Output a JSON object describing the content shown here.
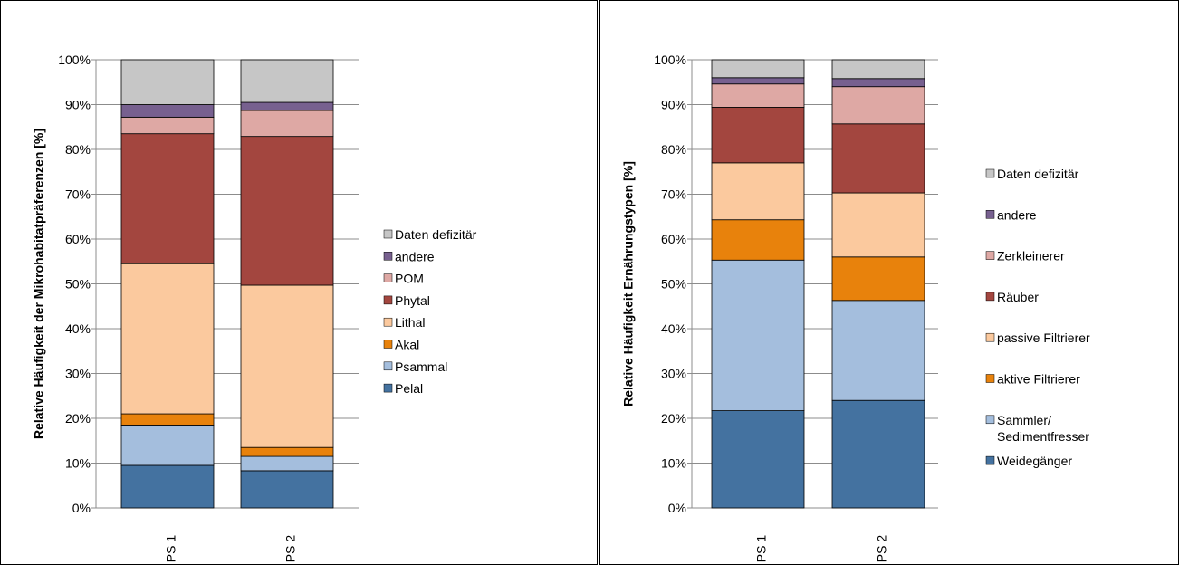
{
  "chart_data": [
    {
      "type": "bar",
      "stacked": true,
      "categories": [
        "PS 1",
        "PS 2"
      ],
      "ylabel": "Relative Häufigkeit der Mikrohabitatpräferenzen [%]",
      "xlabel": "",
      "ylim": [
        0,
        100
      ],
      "yticks": [
        "0%",
        "10%",
        "20%",
        "30%",
        "40%",
        "50%",
        "60%",
        "70%",
        "80%",
        "90%",
        "100%"
      ],
      "grid": true,
      "legend_position": "right",
      "series": [
        {
          "name": "Pelal",
          "color": "#4472a0",
          "values": [
            9.5,
            8.3
          ]
        },
        {
          "name": "Psammal",
          "color": "#a4bedd",
          "values": [
            9.0,
            3.2
          ]
        },
        {
          "name": "Akal",
          "color": "#e8820c",
          "values": [
            2.5,
            2.0
          ]
        },
        {
          "name": "Lithal",
          "color": "#fbc99e",
          "values": [
            33.5,
            36.2
          ]
        },
        {
          "name": "Phytal",
          "color": "#a3463f",
          "values": [
            29.0,
            33.2
          ]
        },
        {
          "name": "POM",
          "color": "#dea8a4",
          "values": [
            3.7,
            5.8
          ]
        },
        {
          "name": "andere",
          "color": "#77608f",
          "values": [
            2.8,
            1.8
          ]
        },
        {
          "name": "Daten defizitär",
          "color": "#c6c6c6",
          "values": [
            10.0,
            9.5
          ]
        }
      ]
    },
    {
      "type": "bar",
      "stacked": true,
      "categories": [
        "PS 1",
        "PS 2"
      ],
      "ylabel": "Relative Häufigkeit Ernährungstypen [%]",
      "xlabel": "",
      "ylim": [
        0,
        100
      ],
      "yticks": [
        "0%",
        "10%",
        "20%",
        "30%",
        "40%",
        "50%",
        "60%",
        "70%",
        "80%",
        "90%",
        "100%"
      ],
      "grid": true,
      "legend_position": "right",
      "series": [
        {
          "name": "Weidegänger",
          "color": "#4472a0",
          "values": [
            21.7,
            24.0
          ]
        },
        {
          "name": "Sammler/\nSedimentfresser",
          "color": "#a4bedd",
          "values": [
            33.6,
            22.3
          ]
        },
        {
          "name": "aktive Filtrierer",
          "color": "#e8820c",
          "values": [
            9.0,
            9.7
          ]
        },
        {
          "name": "passive Filtrierer",
          "color": "#fbc99e",
          "values": [
            12.7,
            14.3
          ]
        },
        {
          "name": "Räuber",
          "color": "#a3463f",
          "values": [
            12.4,
            15.4
          ]
        },
        {
          "name": "Zerkleinerer",
          "color": "#dea8a4",
          "values": [
            5.2,
            8.3
          ]
        },
        {
          "name": "andere",
          "color": "#77608f",
          "values": [
            1.4,
            1.8
          ]
        },
        {
          "name": "Daten defizitär",
          "color": "#c6c6c6",
          "values": [
            4.0,
            4.2
          ]
        }
      ]
    }
  ]
}
